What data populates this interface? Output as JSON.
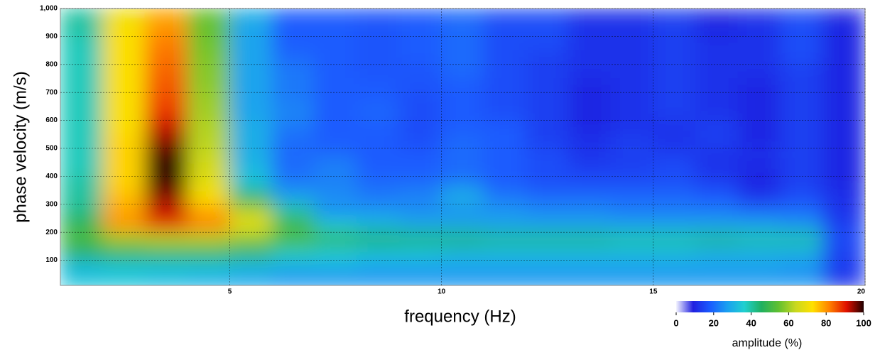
{
  "chart_data": {
    "type": "heatmap",
    "x_label": "frequency (Hz)",
    "y_label": "phase velocity (m/s)",
    "xlim": [
      1,
      20
    ],
    "ylim": [
      10,
      1000
    ],
    "xticks": [
      5,
      10,
      15,
      20
    ],
    "yticks": [
      100,
      200,
      300,
      400,
      500,
      600,
      700,
      800,
      900,
      {
        "value": 1000,
        "label": "1,000"
      }
    ],
    "grid": true,
    "x": [
      1.5,
      2.5,
      3.5,
      4.5,
      5.5,
      6.5,
      7.5,
      8.5,
      9.5,
      10.5,
      11.5,
      12.5,
      13.5,
      14.5,
      15.5,
      16.5,
      17.5,
      18.5,
      19.5
    ],
    "y": [
      975,
      925,
      875,
      825,
      775,
      725,
      675,
      625,
      575,
      525,
      475,
      425,
      375,
      325,
      275,
      225,
      175,
      125,
      75,
      25
    ],
    "z": [
      [
        40,
        70,
        78,
        55,
        30,
        18,
        18,
        17,
        18,
        20,
        16,
        16,
        12,
        12,
        14,
        10,
        12,
        16,
        10
      ],
      [
        40,
        72,
        80,
        55,
        28,
        18,
        18,
        17,
        18,
        20,
        16,
        16,
        12,
        12,
        14,
        10,
        12,
        16,
        10
      ],
      [
        38,
        72,
        82,
        56,
        28,
        18,
        18,
        17,
        18,
        20,
        16,
        16,
        12,
        12,
        14,
        12,
        12,
        16,
        10
      ],
      [
        38,
        72,
        83,
        57,
        28,
        20,
        18,
        17,
        18,
        20,
        16,
        14,
        12,
        12,
        14,
        12,
        12,
        16,
        10
      ],
      [
        38,
        72,
        84,
        58,
        28,
        22,
        18,
        17,
        17,
        20,
        16,
        14,
        12,
        12,
        14,
        12,
        12,
        14,
        10
      ],
      [
        38,
        72,
        85,
        58,
        28,
        22,
        18,
        18,
        17,
        18,
        16,
        14,
        10,
        12,
        14,
        12,
        10,
        14,
        10
      ],
      [
        38,
        72,
        86,
        60,
        28,
        22,
        18,
        18,
        16,
        18,
        16,
        14,
        10,
        12,
        14,
        12,
        10,
        14,
        10
      ],
      [
        38,
        72,
        88,
        60,
        28,
        24,
        18,
        20,
        16,
        18,
        16,
        14,
        10,
        12,
        14,
        12,
        10,
        14,
        10
      ],
      [
        38,
        72,
        92,
        62,
        30,
        22,
        18,
        18,
        16,
        18,
        18,
        14,
        10,
        12,
        12,
        14,
        10,
        14,
        10
      ],
      [
        38,
        74,
        95,
        62,
        30,
        20,
        18,
        18,
        16,
        20,
        18,
        14,
        12,
        14,
        12,
        14,
        10,
        14,
        10
      ],
      [
        38,
        74,
        98,
        64,
        30,
        20,
        20,
        18,
        18,
        20,
        18,
        16,
        12,
        14,
        14,
        12,
        12,
        14,
        10
      ],
      [
        38,
        74,
        100,
        66,
        32,
        20,
        24,
        18,
        18,
        20,
        18,
        16,
        14,
        14,
        16,
        12,
        10,
        14,
        10
      ],
      [
        40,
        74,
        98,
        68,
        34,
        22,
        22,
        20,
        20,
        22,
        18,
        16,
        16,
        16,
        16,
        14,
        10,
        14,
        10
      ],
      [
        40,
        76,
        95,
        72,
        45,
        28,
        26,
        22,
        24,
        32,
        22,
        20,
        20,
        20,
        20,
        18,
        12,
        16,
        12
      ],
      [
        42,
        78,
        92,
        78,
        62,
        40,
        24,
        26,
        24,
        24,
        26,
        24,
        24,
        22,
        22,
        22,
        20,
        20,
        12
      ],
      [
        48,
        80,
        88,
        82,
        70,
        50,
        36,
        32,
        30,
        30,
        28,
        28,
        28,
        28,
        28,
        28,
        28,
        26,
        14
      ],
      [
        52,
        60,
        62,
        62,
        58,
        52,
        48,
        46,
        44,
        44,
        42,
        42,
        42,
        40,
        40,
        42,
        40,
        40,
        16
      ],
      [
        45,
        48,
        48,
        48,
        44,
        38,
        36,
        34,
        34,
        32,
        32,
        32,
        32,
        32,
        32,
        30,
        30,
        30,
        14
      ],
      [
        32,
        34,
        34,
        34,
        32,
        30,
        30,
        28,
        28,
        28,
        28,
        28,
        28,
        28,
        28,
        28,
        28,
        26,
        14
      ],
      [
        34,
        34,
        32,
        30,
        28,
        26,
        26,
        26,
        26,
        26,
        26,
        26,
        26,
        26,
        26,
        26,
        26,
        26,
        12
      ]
    ],
    "colorscale": [
      "#f4f4ff",
      "#2020e0",
      "#1a5cff",
      "#1aa0f0",
      "#20d0d0",
      "#20b060",
      "#60c030",
      "#c8d820",
      "#ffe000",
      "#ff8000",
      "#e01000",
      "#200000"
    ],
    "zlim": [
      0,
      100
    ],
    "zticks": [
      0,
      20,
      40,
      60,
      80,
      100
    ],
    "colorbar_label": "amplitude (%)"
  }
}
